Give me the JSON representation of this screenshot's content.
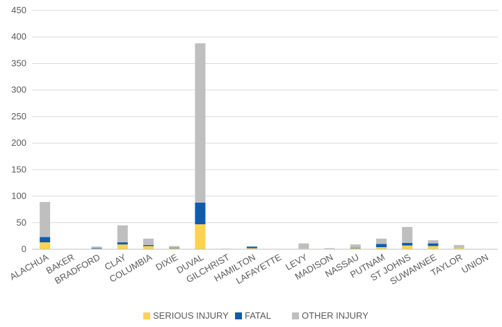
{
  "chart_data": {
    "type": "bar",
    "stacked": true,
    "title": "",
    "xlabel": "",
    "ylabel": "",
    "ylim": [
      0,
      450
    ],
    "yticks": [
      0,
      50,
      100,
      150,
      200,
      250,
      300,
      350,
      400,
      450
    ],
    "grid": true,
    "legend_position": "bottom",
    "categories": [
      "ALACHUA",
      "BAKER",
      "BRADFORD",
      "CLAY",
      "COLUMBIA",
      "DIXIE",
      "DUVAL",
      "GILCHRIST",
      "HAMILTON",
      "LAFAYETTE",
      "LEVY",
      "MADISON",
      "NASSAU",
      "PUTNAM",
      "ST JOHNS",
      "SUWANNEE",
      "TAYLOR",
      "UNION"
    ],
    "series": [
      {
        "name": "SERIOUS INJURY",
        "color": "#FFD34F",
        "values": [
          13,
          0,
          1,
          9,
          6,
          2,
          47,
          0,
          2,
          0,
          1,
          0,
          2,
          4,
          7,
          6,
          2,
          0
        ]
      },
      {
        "name": "FATAL",
        "color": "#0F5CAD",
        "values": [
          10,
          0,
          1,
          4,
          2,
          1,
          41,
          0,
          3,
          0,
          0,
          0,
          1,
          6,
          5,
          5,
          0,
          0
        ]
      },
      {
        "name": "OTHER INJURY",
        "color": "#BFBFBF",
        "values": [
          66,
          0,
          3,
          32,
          12,
          3,
          300,
          1,
          0,
          0,
          10,
          2,
          6,
          10,
          30,
          6,
          6,
          0
        ]
      }
    ]
  }
}
